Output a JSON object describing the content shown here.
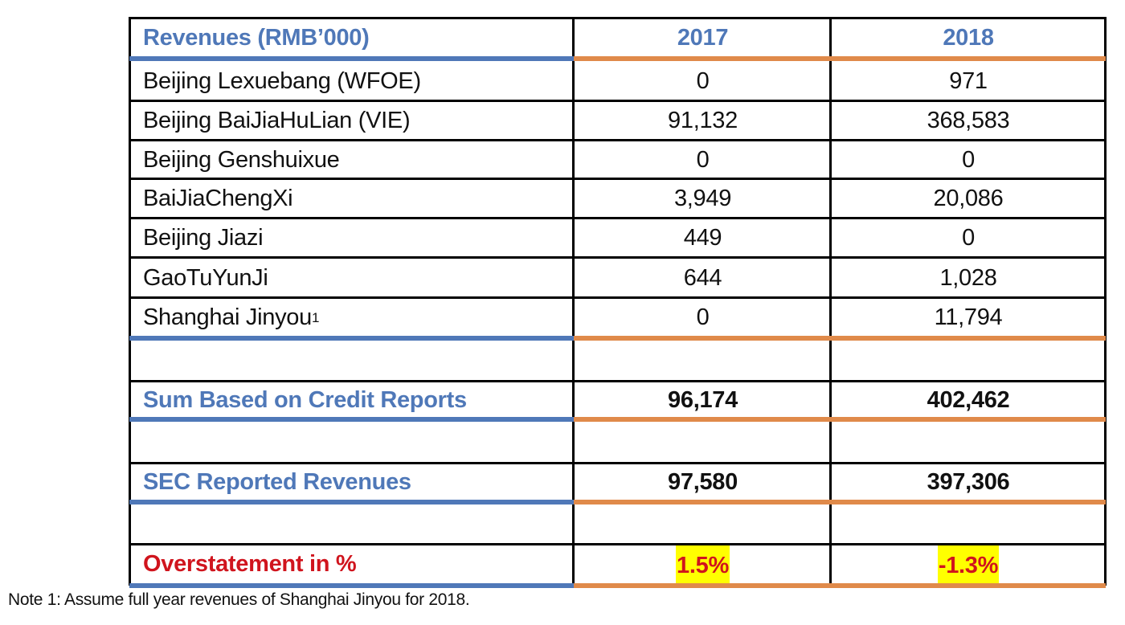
{
  "table": {
    "header": {
      "label": "Revenues (RMB’000)",
      "year_1": "2017",
      "year_2": "2018"
    },
    "rows": [
      {
        "label": "Beijing Lexuebang (WFOE)",
        "v2017": "0",
        "v2018": "971"
      },
      {
        "label": "Beijing BaiJiaHuLian (VIE)",
        "v2017": "91,132",
        "v2018": "368,583"
      },
      {
        "label": "Beijing Genshuixue",
        "v2017": "0",
        "v2018": "0"
      },
      {
        "label": "BaiJiaChengXi",
        "v2017": "3,949",
        "v2018": "20,086"
      },
      {
        "label": "Beijing Jiazi",
        "v2017": "449",
        "v2018": "0"
      },
      {
        "label": "GaoTuYunJi",
        "v2017": "644",
        "v2018": "1,028"
      },
      {
        "label": "Shanghai Jinyou",
        "footnote_marker": "1",
        "v2017": "0",
        "v2018": "11,794"
      }
    ],
    "sum_row": {
      "label": "Sum Based on Credit Reports",
      "v2017": "96,174",
      "v2018": "402,462"
    },
    "sec_row": {
      "label": "SEC Reported Revenues",
      "v2017": "97,580",
      "v2018": "397,306"
    },
    "overstatement_row": {
      "label": "Overstatement in %",
      "v2017": "1.5%",
      "v2018": "-1.3%"
    }
  },
  "footnote": "Note 1: Assume full year revenues of Shanghai Jinyou for 2018.",
  "colors": {
    "label_blue": "#4f78b8",
    "rule_orange": "#e08a4a",
    "alert_red": "#d0141d",
    "highlight_yellow": "#ffff00"
  }
}
